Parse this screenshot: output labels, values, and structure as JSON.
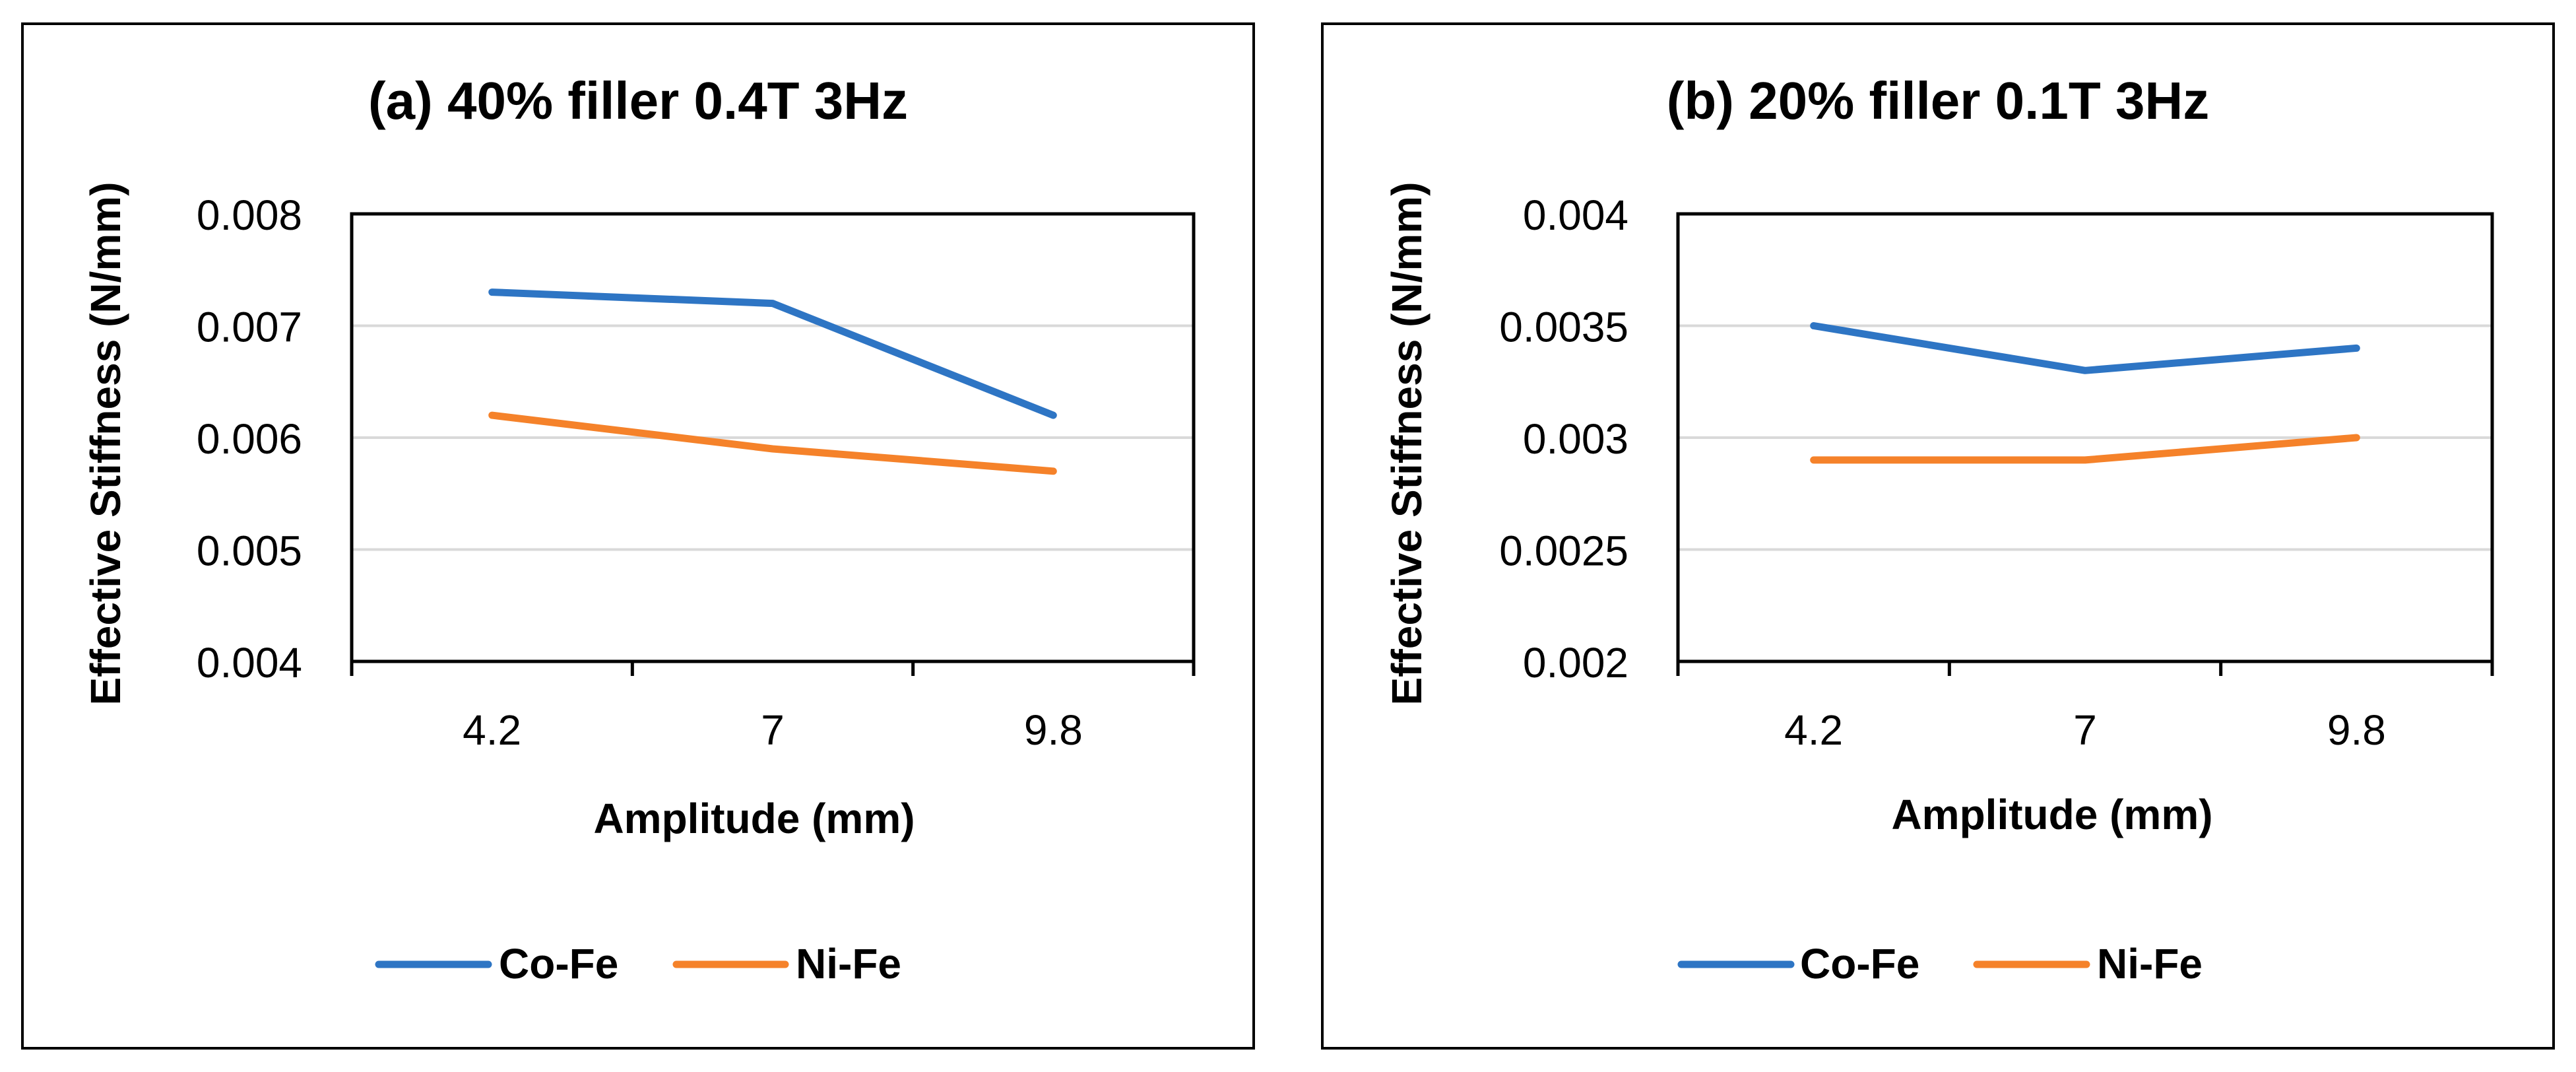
{
  "chart_data": [
    {
      "type": "line",
      "title": "(a) 40% filler 0.4T 3Hz",
      "xlabel": "Amplitude (mm)",
      "ylabel": "Effective Stiffness (N/mm)",
      "categories": [
        "4.2",
        "7",
        "9.8"
      ],
      "ylim": [
        0.004,
        0.008
      ],
      "yticks": [
        "0.004",
        "0.005",
        "0.006",
        "0.007",
        "0.008"
      ],
      "grid": true,
      "legend_position": "bottom",
      "series": [
        {
          "name": "Co-Fe",
          "color": "#2E75C4",
          "values": [
            0.0073,
            0.0072,
            0.0062
          ]
        },
        {
          "name": "Ni-Fe",
          "color": "#F5822A",
          "values": [
            0.0062,
            0.0059,
            0.0057
          ]
        }
      ]
    },
    {
      "type": "line",
      "title": "(b) 20% filler 0.1T 3Hz",
      "xlabel": "Amplitude (mm)",
      "ylabel": "Effective Stiffness (N/mm)",
      "categories": [
        "4.2",
        "7",
        "9.8"
      ],
      "ylim": [
        0.002,
        0.004
      ],
      "yticks": [
        "0.002",
        "0.0025",
        "0.003",
        "0.0035",
        "0.004"
      ],
      "grid": true,
      "legend_position": "bottom",
      "series": [
        {
          "name": "Co-Fe",
          "color": "#2E75C4",
          "values": [
            0.0035,
            0.0033,
            0.0034
          ]
        },
        {
          "name": "Ni-Fe",
          "color": "#F5822A",
          "values": [
            0.0029,
            0.0029,
            0.003
          ]
        }
      ]
    }
  ]
}
